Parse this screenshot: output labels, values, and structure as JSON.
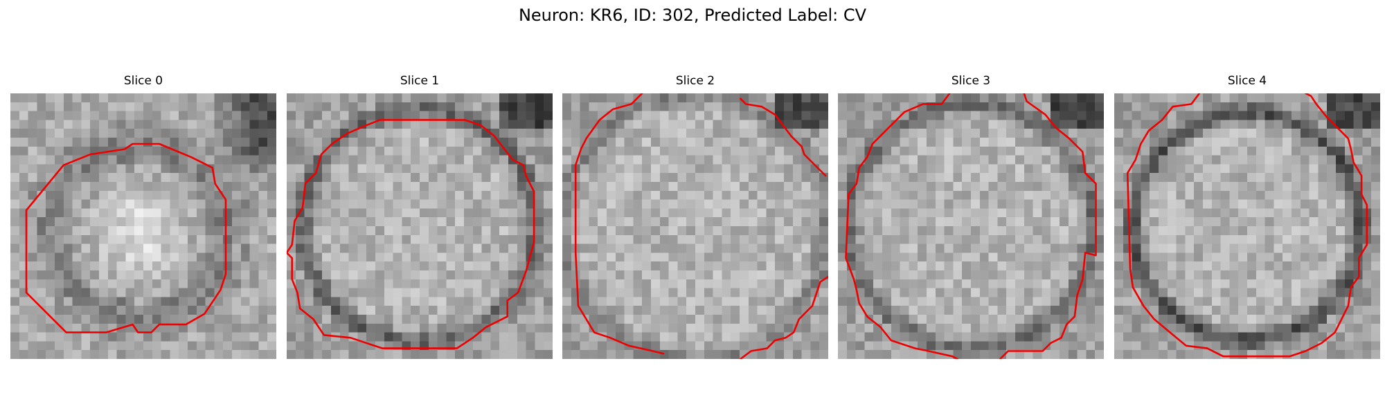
{
  "figure": {
    "title": "Neuron: KR6, ID: 302, Predicted Label: CV",
    "contour_color": "#ee0000"
  },
  "panels": [
    {
      "title": "Slice 0",
      "contours": [
        [
          [
            0.06,
            0.44
          ],
          [
            0.2,
            0.27
          ],
          [
            0.3,
            0.23
          ],
          [
            0.43,
            0.21
          ],
          [
            0.46,
            0.19
          ],
          [
            0.56,
            0.19
          ],
          [
            0.68,
            0.24
          ],
          [
            0.72,
            0.26
          ],
          [
            0.76,
            0.28
          ],
          [
            0.77,
            0.34
          ],
          [
            0.81,
            0.4
          ],
          [
            0.81,
            0.68
          ],
          [
            0.79,
            0.74
          ],
          [
            0.77,
            0.77
          ],
          [
            0.73,
            0.83
          ],
          [
            0.66,
            0.87
          ],
          [
            0.56,
            0.87
          ],
          [
            0.53,
            0.9
          ],
          [
            0.48,
            0.9
          ],
          [
            0.46,
            0.87
          ],
          [
            0.36,
            0.9
          ],
          [
            0.21,
            0.9
          ],
          [
            0.06,
            0.75
          ],
          [
            0.06,
            0.44
          ]
        ]
      ]
    },
    {
      "title": "Slice 1",
      "contours": [
        [
          [
            0.0,
            0.6
          ],
          [
            0.02,
            0.57
          ],
          [
            0.03,
            0.48
          ],
          [
            0.06,
            0.43
          ],
          [
            0.07,
            0.34
          ],
          [
            0.11,
            0.3
          ],
          [
            0.13,
            0.23
          ],
          [
            0.17,
            0.19
          ],
          [
            0.23,
            0.15
          ],
          [
            0.3,
            0.12
          ],
          [
            0.35,
            0.1
          ],
          [
            0.67,
            0.1
          ],
          [
            0.73,
            0.12
          ],
          [
            0.78,
            0.16
          ],
          [
            0.85,
            0.25
          ],
          [
            0.89,
            0.27
          ],
          [
            0.9,
            0.31
          ],
          [
            0.93,
            0.37
          ],
          [
            0.93,
            0.56
          ],
          [
            0.9,
            0.67
          ],
          [
            0.87,
            0.75
          ],
          [
            0.83,
            0.78
          ],
          [
            0.83,
            0.84
          ],
          [
            0.75,
            0.88
          ],
          [
            0.7,
            0.92
          ],
          [
            0.64,
            0.96
          ],
          [
            0.36,
            0.96
          ],
          [
            0.24,
            0.92
          ],
          [
            0.14,
            0.91
          ],
          [
            0.1,
            0.85
          ],
          [
            0.05,
            0.81
          ],
          [
            0.04,
            0.75
          ],
          [
            0.02,
            0.7
          ],
          [
            0.02,
            0.62
          ],
          [
            0.0,
            0.6
          ]
        ]
      ]
    },
    {
      "title": "Slice 2",
      "contours": [
        [
          [
            0.3,
            0.0
          ],
          [
            0.26,
            0.04
          ],
          [
            0.19,
            0.06
          ],
          [
            0.14,
            0.1
          ],
          [
            0.09,
            0.17
          ],
          [
            0.07,
            0.21
          ],
          [
            0.05,
            0.27
          ],
          [
            0.05,
            0.6
          ],
          [
            0.06,
            0.8
          ],
          [
            0.09,
            0.85
          ],
          [
            0.12,
            0.9
          ],
          [
            0.18,
            0.92
          ],
          [
            0.25,
            0.95
          ],
          [
            0.34,
            0.97
          ],
          [
            0.38,
            0.98
          ]
        ],
        [
          [
            0.67,
            1.0
          ],
          [
            0.71,
            0.97
          ],
          [
            0.77,
            0.96
          ],
          [
            0.8,
            0.93
          ],
          [
            0.84,
            0.92
          ],
          [
            0.87,
            0.9
          ],
          [
            0.89,
            0.85
          ],
          [
            0.94,
            0.8
          ],
          [
            0.96,
            0.74
          ],
          [
            0.97,
            0.71
          ],
          [
            1.0,
            0.69
          ]
        ],
        [
          [
            0.67,
            0.02
          ],
          [
            0.69,
            0.04
          ],
          [
            0.75,
            0.05
          ],
          [
            0.8,
            0.08
          ],
          [
            0.83,
            0.12
          ],
          [
            0.86,
            0.16
          ],
          [
            0.9,
            0.2
          ],
          [
            0.91,
            0.23
          ],
          [
            0.96,
            0.28
          ],
          [
            0.99,
            0.31
          ]
        ]
      ]
    },
    {
      "title": "Slice 3",
      "contours": [
        [
          [
            0.42,
            0.0
          ],
          [
            0.39,
            0.04
          ],
          [
            0.32,
            0.04
          ],
          [
            0.25,
            0.07
          ],
          [
            0.19,
            0.13
          ],
          [
            0.13,
            0.19
          ],
          [
            0.11,
            0.24
          ],
          [
            0.08,
            0.28
          ],
          [
            0.07,
            0.34
          ],
          [
            0.04,
            0.38
          ],
          [
            0.03,
            0.62
          ],
          [
            0.06,
            0.7
          ],
          [
            0.07,
            0.74
          ],
          [
            0.08,
            0.79
          ],
          [
            0.11,
            0.84
          ],
          [
            0.16,
            0.88
          ],
          [
            0.2,
            0.93
          ],
          [
            0.29,
            0.96
          ],
          [
            0.34,
            0.97
          ],
          [
            0.43,
            0.99
          ],
          [
            0.45,
            1.0
          ]
        ],
        [
          [
            0.61,
            1.0
          ],
          [
            0.64,
            0.97
          ],
          [
            0.77,
            0.97
          ],
          [
            0.8,
            0.94
          ],
          [
            0.84,
            0.92
          ],
          [
            0.86,
            0.87
          ],
          [
            0.89,
            0.84
          ],
          [
            0.9,
            0.76
          ],
          [
            0.92,
            0.7
          ],
          [
            0.93,
            0.6
          ],
          [
            0.97,
            0.61
          ],
          [
            0.97,
            0.34
          ],
          [
            0.93,
            0.3
          ],
          [
            0.92,
            0.22
          ],
          [
            0.87,
            0.17
          ],
          [
            0.82,
            0.13
          ],
          [
            0.78,
            0.08
          ],
          [
            0.71,
            0.03
          ],
          [
            0.7,
            0.0
          ]
        ]
      ]
    },
    {
      "title": "Slice 4",
      "contours": [
        [
          [
            0.32,
            0.0
          ],
          [
            0.29,
            0.04
          ],
          [
            0.22,
            0.05
          ],
          [
            0.18,
            0.1
          ],
          [
            0.13,
            0.14
          ],
          [
            0.1,
            0.19
          ],
          [
            0.08,
            0.25
          ],
          [
            0.05,
            0.3
          ],
          [
            0.06,
            0.66
          ],
          [
            0.07,
            0.73
          ],
          [
            0.11,
            0.8
          ],
          [
            0.15,
            0.85
          ],
          [
            0.21,
            0.9
          ],
          [
            0.27,
            0.95
          ],
          [
            0.35,
            0.96
          ],
          [
            0.41,
            0.99
          ],
          [
            0.57,
            0.99
          ],
          [
            0.66,
            0.99
          ],
          [
            0.72,
            0.97
          ],
          [
            0.78,
            0.94
          ],
          [
            0.83,
            0.9
          ],
          [
            0.86,
            0.84
          ],
          [
            0.88,
            0.8
          ],
          [
            0.89,
            0.73
          ],
          [
            0.92,
            0.69
          ],
          [
            0.92,
            0.62
          ],
          [
            0.95,
            0.57
          ],
          [
            0.95,
            0.42
          ],
          [
            0.93,
            0.38
          ],
          [
            0.93,
            0.31
          ],
          [
            0.9,
            0.26
          ],
          [
            0.89,
            0.21
          ],
          [
            0.88,
            0.17
          ],
          [
            0.84,
            0.13
          ],
          [
            0.8,
            0.09
          ],
          [
            0.76,
            0.04
          ],
          [
            0.74,
            0.01
          ],
          [
            0.72,
            0.0
          ]
        ]
      ]
    }
  ]
}
